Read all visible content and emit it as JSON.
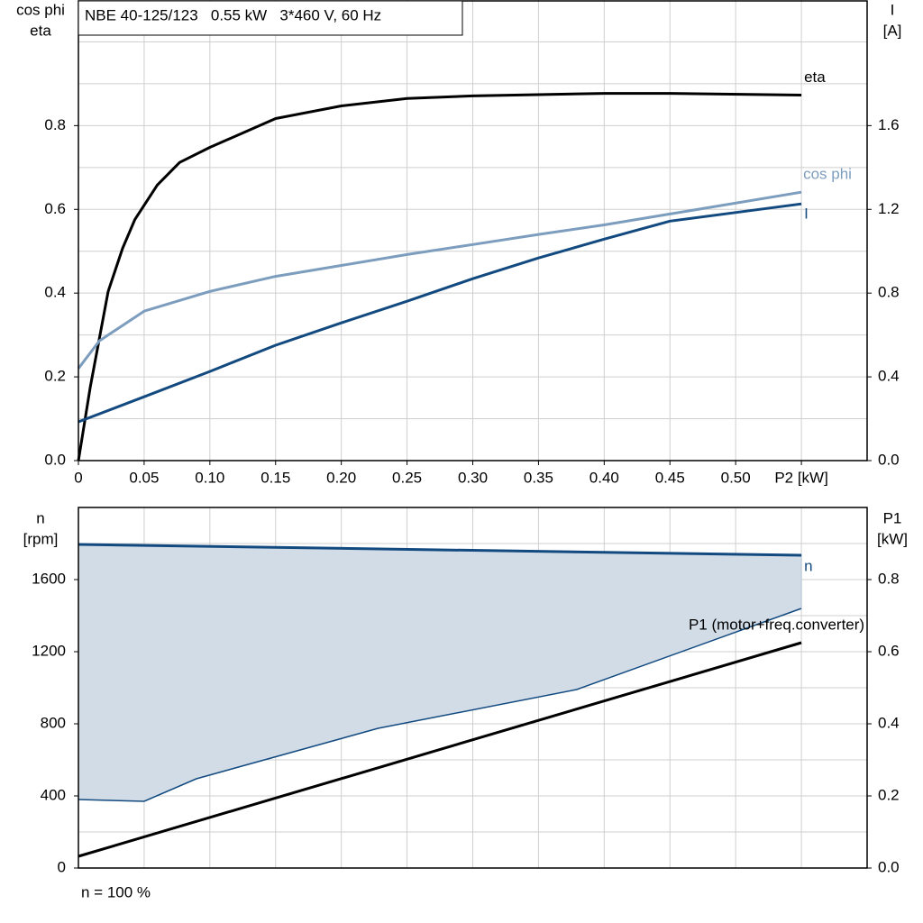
{
  "chart_data": [
    {
      "type": "line",
      "title": "NBE 40-125/123   0.55 kW   3*460 V, 60 Hz",
      "y_label": [
        "cos phi",
        "eta"
      ],
      "y2_label": [
        "I",
        "[A]"
      ],
      "xlim": [
        0,
        0.6
      ],
      "ylim": [
        0,
        1.1
      ],
      "y2lim": [
        0,
        2.2
      ],
      "xticks": [
        0,
        0.05,
        {
          "value": 0.1,
          "label": "0.10"
        },
        0.15,
        {
          "value": 0.2,
          "label": "0.20"
        },
        0.25,
        {
          "value": 0.3,
          "label": "0.30"
        },
        0.35,
        {
          "value": 0.4,
          "label": "0.40"
        },
        0.45,
        {
          "value": 0.5,
          "label": "0.50"
        },
        {
          "value": 0.55,
          "label": "P2 [kW]"
        }
      ],
      "yticks": [
        {
          "value": 0,
          "label": "0.0"
        },
        0.2,
        0.4,
        0.6,
        0.8
      ],
      "y2ticks": [
        {
          "value": 0,
          "label": "0.0"
        },
        0.4,
        0.8,
        1.2,
        1.6
      ],
      "yminor": [
        0.1,
        0.3,
        0.5,
        0.7,
        0.9,
        1.0
      ],
      "grid": true,
      "series": [
        {
          "name": "eta",
          "color": "#000000",
          "x": [
            0,
            0.009,
            0.0226,
            0.0336,
            0.043,
            0.06,
            0.077,
            0.1,
            0.15,
            0.2,
            0.25,
            0.3,
            0.4,
            0.45,
            0.55
          ],
          "values": [
            0,
            0.175,
            0.404,
            0.507,
            0.576,
            0.658,
            0.712,
            0.748,
            0.817,
            0.847,
            0.865,
            0.871,
            0.877,
            0.877,
            0.873
          ]
        },
        {
          "name": "cos phi",
          "color": "#7d9dbf",
          "x": [
            0,
            0.016,
            0.05,
            0.1,
            0.15,
            0.2,
            0.25,
            0.3,
            0.35,
            0.4,
            0.45,
            0.55
          ],
          "values": [
            0.22,
            0.286,
            0.357,
            0.404,
            0.44,
            0.466,
            0.492,
            0.516,
            0.54,
            0.563,
            0.589,
            0.641
          ]
        },
        {
          "name": "I",
          "color": "#124a80",
          "axis": "y2",
          "x": [
            0,
            0.05,
            0.1,
            0.15,
            0.2,
            0.25,
            0.3,
            0.35,
            0.4,
            0.45,
            0.55
          ],
          "values": [
            0.185,
            0.305,
            0.426,
            0.551,
            0.658,
            0.761,
            0.869,
            0.968,
            1.058,
            1.144,
            1.226
          ]
        }
      ]
    },
    {
      "type": "area",
      "y_label": [
        "n",
        "[rpm]"
      ],
      "y2_label": [
        "P1",
        "[kW]"
      ],
      "note": "n = 100 %",
      "xlim": [
        0,
        0.6
      ],
      "ylim": [
        0,
        2000
      ],
      "y2lim": [
        0,
        1
      ],
      "xgrid": [
        0.05,
        0.1,
        0.15,
        0.2,
        0.25,
        0.3,
        0.35,
        0.4,
        0.45,
        0.5,
        0.55
      ],
      "yticks": [
        0,
        400,
        800,
        1200,
        1600
      ],
      "y2ticks": [
        {
          "value": 0,
          "label": "0.0"
        },
        0.2,
        0.4,
        0.6,
        0.8
      ],
      "yminor": [
        200,
        600,
        1000,
        1400,
        1800
      ],
      "grid": true,
      "area_color": "#d1dce7",
      "series": [
        {
          "name": "n",
          "color": "#124a80",
          "x": [
            0,
            0.55
          ],
          "values": [
            1795,
            1735
          ],
          "lower_x": [
            0,
            0.05,
            0.0897,
            0.228,
            0.379,
            0.55
          ],
          "lower_values": [
            380,
            370,
            495,
            775,
            990,
            1440
          ]
        },
        {
          "name": "P1 (motor+freq.converter)",
          "color": "#000000",
          "axis": "y2",
          "x": [
            0,
            0.55
          ],
          "values": [
            0.0325,
            0.625
          ]
        }
      ]
    }
  ]
}
